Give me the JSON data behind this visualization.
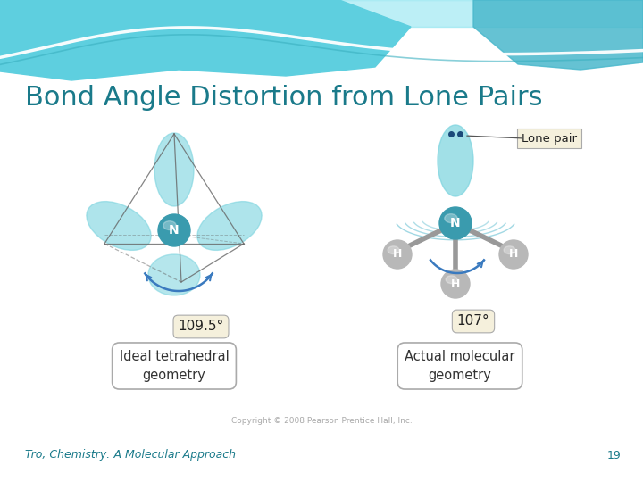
{
  "title": "Bond Angle Distortion from Lone Pairs",
  "title_color": "#1a7a8a",
  "title_fontsize": 22,
  "bg_color": "#ffffff",
  "header_color1": "#5ecfdf",
  "footer_text1": "Tro, Chemistry: A Molecular Approach",
  "footer_text2": "19",
  "footer_color": "#1a7a8a",
  "footer_fontsize": 9,
  "copyright_text": "Copyright © 2008 Pearson Prentice Hall, Inc.",
  "copyright_fontsize": 6.5,
  "label_left": "Ideal tetrahedral\ngeometry",
  "label_right": "Actual molecular\ngeometry",
  "angle_left": "109.5°",
  "angle_right": "107°",
  "lone_pair_label": "Lone pair",
  "nitrogen_color": "#3a9bae",
  "orbital_color": "#7dd4df",
  "orbital_alpha": 0.62,
  "hydrogen_color": "#b8b8b8",
  "bond_color": "#999999",
  "arrow_color": "#3a7abf",
  "box_bg": "#f5f0dc",
  "box_edge": "#aaaaaa",
  "box_label_bg": "#ffffff",
  "box_label_edge": "#aaaaaa",
  "lp_dot_color": "#1a4a7a",
  "cage_color": "#666666",
  "wave_color1": "#5ecfdf",
  "wave_color2": "#4ab8cc",
  "arc_color": "#7ac8d8"
}
